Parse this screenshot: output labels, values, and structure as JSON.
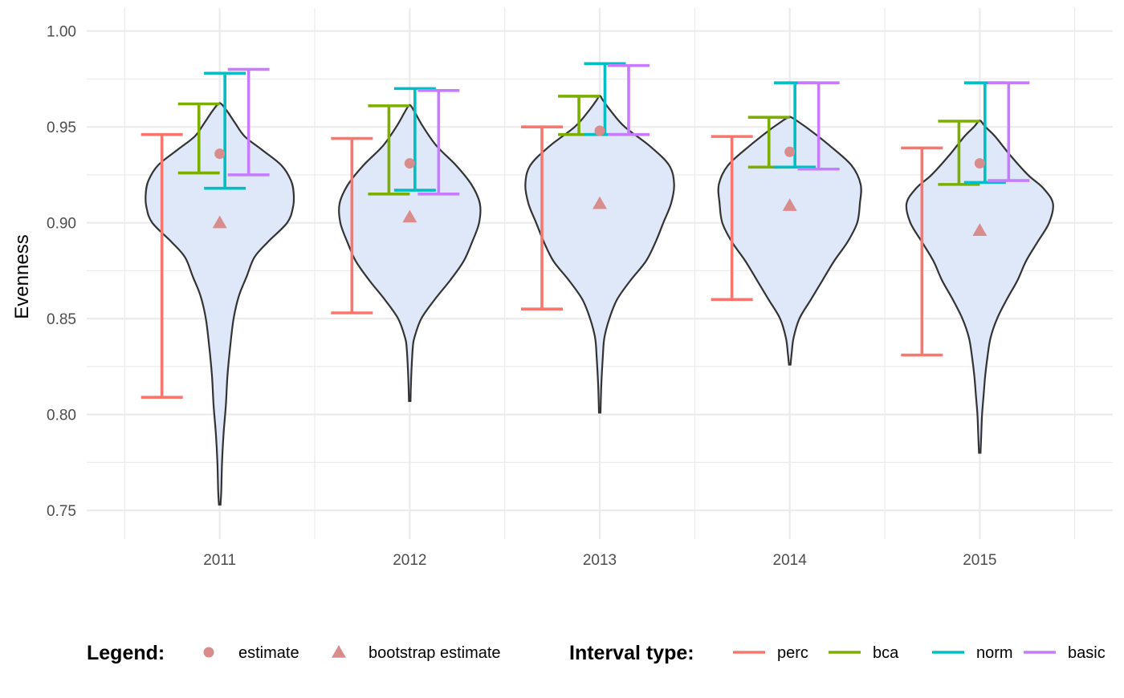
{
  "chart_data": {
    "type": "violin",
    "ylabel": "Evenness",
    "xlabel": "",
    "ylim": [
      0.735,
      1.012
    ],
    "yticks": [
      {
        "value": 0.75,
        "label": "0.75"
      },
      {
        "value": 0.8,
        "label": "0.80"
      },
      {
        "value": 0.85,
        "label": "0.85"
      },
      {
        "value": 0.9,
        "label": "0.90"
      },
      {
        "value": 0.95,
        "label": "0.95"
      },
      {
        "value": 1.0,
        "label": "1.00"
      }
    ],
    "categories": [
      "2011",
      "2012",
      "2013",
      "2014",
      "2015"
    ],
    "grid": true,
    "legend_position": "bottom",
    "legend": {
      "points_title": "Legend:",
      "points": [
        {
          "label": "estimate",
          "shape": "circle"
        },
        {
          "label": "bootstrap estimate",
          "shape": "triangle"
        }
      ],
      "intervals_title": "Interval type:",
      "interval_types": [
        {
          "label": "perc",
          "color": "#F8766D"
        },
        {
          "label": "bca",
          "color": "#7CAE00"
        },
        {
          "label": "norm",
          "color": "#00BFC4"
        },
        {
          "label": "basic",
          "color": "#C77CFF"
        }
      ]
    },
    "colors": {
      "point": "#D98C8C",
      "violin_fill": "#DFE8F8",
      "violin_stroke": "#333333",
      "grid": "#EBEBEB"
    },
    "groups": [
      {
        "year": "2011",
        "estimate": 0.936,
        "bootstrap_estimate": 0.9,
        "intervals": {
          "perc": [
            0.809,
            0.946
          ],
          "bca": [
            0.926,
            0.962
          ],
          "norm": [
            0.918,
            0.978
          ],
          "basic": [
            0.925,
            0.98
          ]
        },
        "violin": [
          [
            0.753,
            0.002
          ],
          [
            0.76,
            0.004
          ],
          [
            0.775,
            0.006
          ],
          [
            0.79,
            0.01
          ],
          [
            0.805,
            0.016
          ],
          [
            0.82,
            0.02
          ],
          [
            0.835,
            0.027
          ],
          [
            0.85,
            0.036
          ],
          [
            0.862,
            0.05
          ],
          [
            0.872,
            0.07
          ],
          [
            0.882,
            0.09
          ],
          [
            0.89,
            0.125
          ],
          [
            0.9,
            0.175
          ],
          [
            0.908,
            0.19
          ],
          [
            0.915,
            0.192
          ],
          [
            0.922,
            0.185
          ],
          [
            0.93,
            0.16
          ],
          [
            0.938,
            0.11
          ],
          [
            0.945,
            0.065
          ],
          [
            0.952,
            0.04
          ],
          [
            0.958,
            0.02
          ],
          [
            0.962,
            0.004
          ]
        ]
      },
      {
        "year": "2012",
        "estimate": 0.931,
        "bootstrap_estimate": 0.903,
        "intervals": {
          "perc": [
            0.853,
            0.944
          ],
          "bca": [
            0.915,
            0.961
          ],
          "norm": [
            0.917,
            0.97
          ],
          "basic": [
            0.915,
            0.969
          ]
        },
        "violin": [
          [
            0.807,
            0.002
          ],
          [
            0.815,
            0.003
          ],
          [
            0.825,
            0.005
          ],
          [
            0.835,
            0.008
          ],
          [
            0.84,
            0.012
          ],
          [
            0.85,
            0.03
          ],
          [
            0.86,
            0.065
          ],
          [
            0.87,
            0.105
          ],
          [
            0.88,
            0.14
          ],
          [
            0.89,
            0.162
          ],
          [
            0.9,
            0.18
          ],
          [
            0.91,
            0.182
          ],
          [
            0.92,
            0.16
          ],
          [
            0.93,
            0.12
          ],
          [
            0.94,
            0.07
          ],
          [
            0.95,
            0.035
          ],
          [
            0.957,
            0.015
          ],
          [
            0.961,
            0.003
          ]
        ]
      },
      {
        "year": "2013",
        "estimate": 0.948,
        "bootstrap_estimate": 0.91,
        "intervals": {
          "perc": [
            0.855,
            0.95
          ],
          "bca": [
            0.946,
            0.966
          ],
          "norm": [
            0.946,
            0.983
          ],
          "basic": [
            0.946,
            0.982
          ]
        },
        "violin": [
          [
            0.801,
            0.002
          ],
          [
            0.815,
            0.004
          ],
          [
            0.83,
            0.008
          ],
          [
            0.84,
            0.012
          ],
          [
            0.85,
            0.025
          ],
          [
            0.86,
            0.045
          ],
          [
            0.87,
            0.08
          ],
          [
            0.88,
            0.12
          ],
          [
            0.89,
            0.145
          ],
          [
            0.9,
            0.165
          ],
          [
            0.91,
            0.185
          ],
          [
            0.92,
            0.193
          ],
          [
            0.93,
            0.18
          ],
          [
            0.94,
            0.13
          ],
          [
            0.95,
            0.065
          ],
          [
            0.958,
            0.03
          ],
          [
            0.964,
            0.008
          ],
          [
            0.966,
            0.002
          ]
        ]
      },
      {
        "year": "2014",
        "estimate": 0.937,
        "bootstrap_estimate": 0.909,
        "intervals": {
          "perc": [
            0.86,
            0.945
          ],
          "bca": [
            0.929,
            0.955
          ],
          "norm": [
            0.929,
            0.973
          ],
          "basic": [
            0.928,
            0.973
          ]
        },
        "violin": [
          [
            0.826,
            0.002
          ],
          [
            0.832,
            0.005
          ],
          [
            0.84,
            0.01
          ],
          [
            0.85,
            0.025
          ],
          [
            0.86,
            0.055
          ],
          [
            0.87,
            0.085
          ],
          [
            0.88,
            0.115
          ],
          [
            0.89,
            0.15
          ],
          [
            0.9,
            0.175
          ],
          [
            0.91,
            0.182
          ],
          [
            0.92,
            0.184
          ],
          [
            0.93,
            0.16
          ],
          [
            0.94,
            0.105
          ],
          [
            0.948,
            0.055
          ],
          [
            0.953,
            0.02
          ],
          [
            0.955,
            0.004
          ]
        ]
      },
      {
        "year": "2015",
        "estimate": 0.931,
        "bootstrap_estimate": 0.896,
        "intervals": {
          "perc": [
            0.831,
            0.939
          ],
          "bca": [
            0.92,
            0.953
          ],
          "norm": [
            0.921,
            0.973
          ],
          "basic": [
            0.922,
            0.973
          ]
        },
        "violin": [
          [
            0.78,
            0.002
          ],
          [
            0.79,
            0.004
          ],
          [
            0.8,
            0.006
          ],
          [
            0.81,
            0.01
          ],
          [
            0.82,
            0.014
          ],
          [
            0.83,
            0.02
          ],
          [
            0.84,
            0.028
          ],
          [
            0.85,
            0.045
          ],
          [
            0.86,
            0.07
          ],
          [
            0.87,
            0.098
          ],
          [
            0.88,
            0.12
          ],
          [
            0.89,
            0.15
          ],
          [
            0.9,
            0.18
          ],
          [
            0.91,
            0.19
          ],
          [
            0.918,
            0.165
          ],
          [
            0.925,
            0.125
          ],
          [
            0.935,
            0.08
          ],
          [
            0.945,
            0.04
          ],
          [
            0.95,
            0.015
          ],
          [
            0.953,
            0.003
          ]
        ]
      }
    ]
  }
}
